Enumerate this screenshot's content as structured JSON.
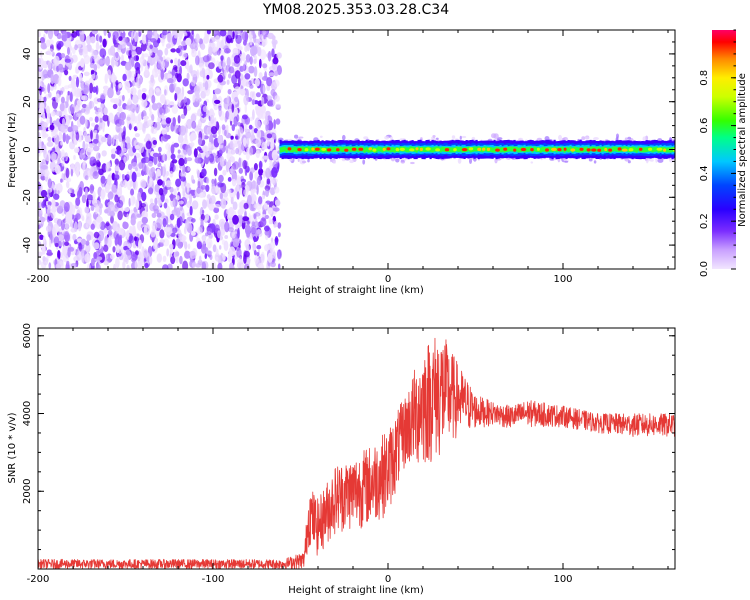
{
  "title": "YM08.2025.353.03.28.C34",
  "colors": {
    "snr_line": "#e53935",
    "colormap": [
      "#f2e6ff",
      "#d8b4ff",
      "#a56bff",
      "#6a00ff",
      "#0000ff",
      "#00c8ff",
      "#00ff00",
      "#ffff00",
      "#ff0000",
      "#ff0066"
    ]
  },
  "chart_data": [
    {
      "id": "spectrogram",
      "type": "heatmap",
      "xlabel": "Height of straight line (km)",
      "ylabel": "Frequency (Hz)",
      "xlim": [
        -200,
        164
      ],
      "ylim": [
        -50,
        50
      ],
      "xticks": [
        "-200",
        "-100",
        "0",
        "100"
      ],
      "yticks": [
        "-40",
        "-20",
        "0",
        "20",
        "40"
      ],
      "xtick_values": [
        -200,
        -100,
        0,
        100
      ],
      "ytick_values": [
        -40,
        -20,
        0,
        20,
        40
      ],
      "colorbar": {
        "label": "Normalized spectral amplitude",
        "range": [
          0,
          1
        ],
        "ticks": [
          "0.0",
          "0.2",
          "0.4",
          "0.6",
          "0.8"
        ],
        "tick_values": [
          0.0,
          0.2,
          0.4,
          0.6,
          0.8
        ]
      },
      "noise_region_x": [
        -200,
        -62
      ],
      "signal_region_x": [
        -62,
        164
      ],
      "signal_band_center_hz": 0,
      "signal_band_width_hz": 5
    },
    {
      "id": "snr",
      "type": "line",
      "xlabel": "Height of straight line (km)",
      "ylabel": "SNR (10 * v/v)",
      "xlim": [
        -200,
        164
      ],
      "ylim": [
        0,
        6200
      ],
      "xticks": [
        "-200",
        "-100",
        "0",
        "100"
      ],
      "yticks": [
        "2000",
        "4000",
        "6000"
      ],
      "xtick_values": [
        -200,
        -100,
        0,
        100
      ],
      "ytick_values": [
        2000,
        4000,
        6000
      ],
      "envelope": {
        "x": [
          -200,
          -150,
          -100,
          -60,
          -48,
          -45,
          -40,
          -30,
          -20,
          -10,
          0,
          10,
          20,
          30,
          40,
          50,
          60,
          70,
          80,
          100,
          120,
          140,
          164
        ],
        "y_min": [
          0,
          0,
          0,
          0,
          0,
          600,
          300,
          900,
          1000,
          1100,
          1400,
          2600,
          2600,
          2800,
          3400,
          3600,
          3700,
          3600,
          3650,
          3650,
          3500,
          3400,
          3400
        ],
        "y_max": [
          250,
          250,
          250,
          250,
          450,
          2200,
          1800,
          2700,
          2900,
          3200,
          3600,
          4500,
          5800,
          6200,
          5300,
          4500,
          4300,
          4200,
          4350,
          4200,
          4000,
          4000,
          4000
        ]
      }
    }
  ]
}
